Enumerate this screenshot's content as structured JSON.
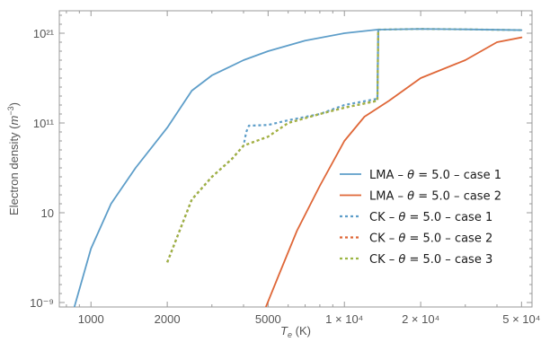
{
  "chart_data": {
    "type": "line",
    "xlabel": "Te (K)",
    "ylabel": "Electron density (m⁻³)",
    "x_scale": "log",
    "y_scale": "log",
    "xlim": [
      750,
      55000
    ],
    "ylim": [
      3.16e-10,
      3.16e+23
    ],
    "grid": false,
    "legend_placement": "bottom-right",
    "x_ticks": [
      {
        "value": 1000,
        "label": "1000"
      },
      {
        "value": 2000,
        "label": "2000"
      },
      {
        "value": 5000,
        "label": "5000"
      },
      {
        "value": 10000,
        "label": "1 × 10⁴"
      },
      {
        "value": 20000,
        "label": "2 × 10⁴"
      },
      {
        "value": 50000,
        "label": "5 × 10⁴"
      }
    ],
    "y_ticks": [
      {
        "value": 1e-09,
        "label": "10⁻⁹"
      },
      {
        "value": 10,
        "label": "10"
      },
      {
        "value": 100000000000.0,
        "label": "10¹¹"
      },
      {
        "value": 1e+21,
        "label": "10²¹"
      }
    ],
    "series": [
      {
        "name": "LMA – θ = 5.0 – case 1",
        "color": "#5E9EC9",
        "dash": "solid",
        "points": [
          [
            860,
            3.16e-10
          ],
          [
            1000,
            0.001
          ],
          [
            1200,
            100.0
          ],
          [
            1500,
            1000000.0
          ],
          [
            2000,
            30000000000.0
          ],
          [
            2500,
            400000000000000.0
          ],
          [
            3000,
            2e+16
          ],
          [
            4000,
            1e+18
          ],
          [
            5000,
            1e+19
          ],
          [
            7000,
            1.5e+20
          ],
          [
            10000,
            1e+21
          ],
          [
            13500,
            2.5e+21
          ],
          [
            20000,
            3e+21
          ],
          [
            30000,
            2.7e+21
          ],
          [
            50000,
            2.2e+21
          ]
        ]
      },
      {
        "name": "LMA – θ = 5.0 – case 2",
        "color": "#DF6738",
        "dash": "solid",
        "points": [
          [
            4900,
            3.16e-10
          ],
          [
            5500,
            1e-06
          ],
          [
            6500,
            0.1
          ],
          [
            8000,
            10000.0
          ],
          [
            10000,
            1000000000.0
          ],
          [
            12000,
            500000000000.0
          ],
          [
            15000,
            30000000000000.0
          ],
          [
            20000,
            1e+16
          ],
          [
            30000,
            1e+18
          ],
          [
            40000,
            1e+20
          ],
          [
            50000,
            3.4e+20
          ]
        ]
      },
      {
        "name": "CK – θ = 5.0 – case 1",
        "color": "#5E9EC9",
        "dash": "dashed",
        "points": [
          [
            2000,
            3e-05
          ],
          [
            2500,
            300.0
          ],
          [
            3000,
            100000.0
          ],
          [
            3600,
            10000000.0
          ],
          [
            4000,
            300000000.0
          ],
          [
            4100,
            10000000000.0
          ],
          [
            4200,
            50000000000.0
          ],
          [
            5000,
            60000000000.0
          ],
          [
            6000,
            200000000000.0
          ],
          [
            8000,
            1000000000000.0
          ],
          [
            10000,
            10000000000000.0
          ],
          [
            13500,
            50000000000000.0
          ],
          [
            13600,
            2e+21
          ]
        ]
      },
      {
        "name": "CK – θ = 5.0 – case 2",
        "color": "#DF6738",
        "dash": "dashed",
        "points": [
          [
            2000,
            3e-05
          ],
          [
            2500,
            300.0
          ],
          [
            3000,
            100000.0
          ],
          [
            3600,
            10000000.0
          ],
          [
            4000,
            300000000.0
          ],
          [
            5000,
            3000000000.0
          ],
          [
            6000,
            100000000000.0
          ],
          [
            8000,
            1000000000000.0
          ],
          [
            10000,
            5000000000000.0
          ],
          [
            13500,
            30000000000000.0
          ],
          [
            13600,
            2e+21
          ]
        ]
      },
      {
        "name": "CK – θ = 5.0 – case 3",
        "color": "#9CB644",
        "dash": "dashed",
        "points": [
          [
            2000,
            3e-05
          ],
          [
            2500,
            300.0
          ],
          [
            3000,
            100000.0
          ],
          [
            3600,
            10000000.0
          ],
          [
            4000,
            300000000.0
          ],
          [
            5000,
            3000000000.0
          ],
          [
            6000,
            100000000000.0
          ],
          [
            8000,
            1000000000000.0
          ],
          [
            10000,
            5000000000000.0
          ],
          [
            13500,
            30000000000000.0
          ],
          [
            13600,
            2.5e+21
          ],
          [
            20000,
            3e+21
          ],
          [
            30000,
            2.7e+21
          ],
          [
            50000,
            2.2e+21
          ]
        ]
      }
    ]
  }
}
